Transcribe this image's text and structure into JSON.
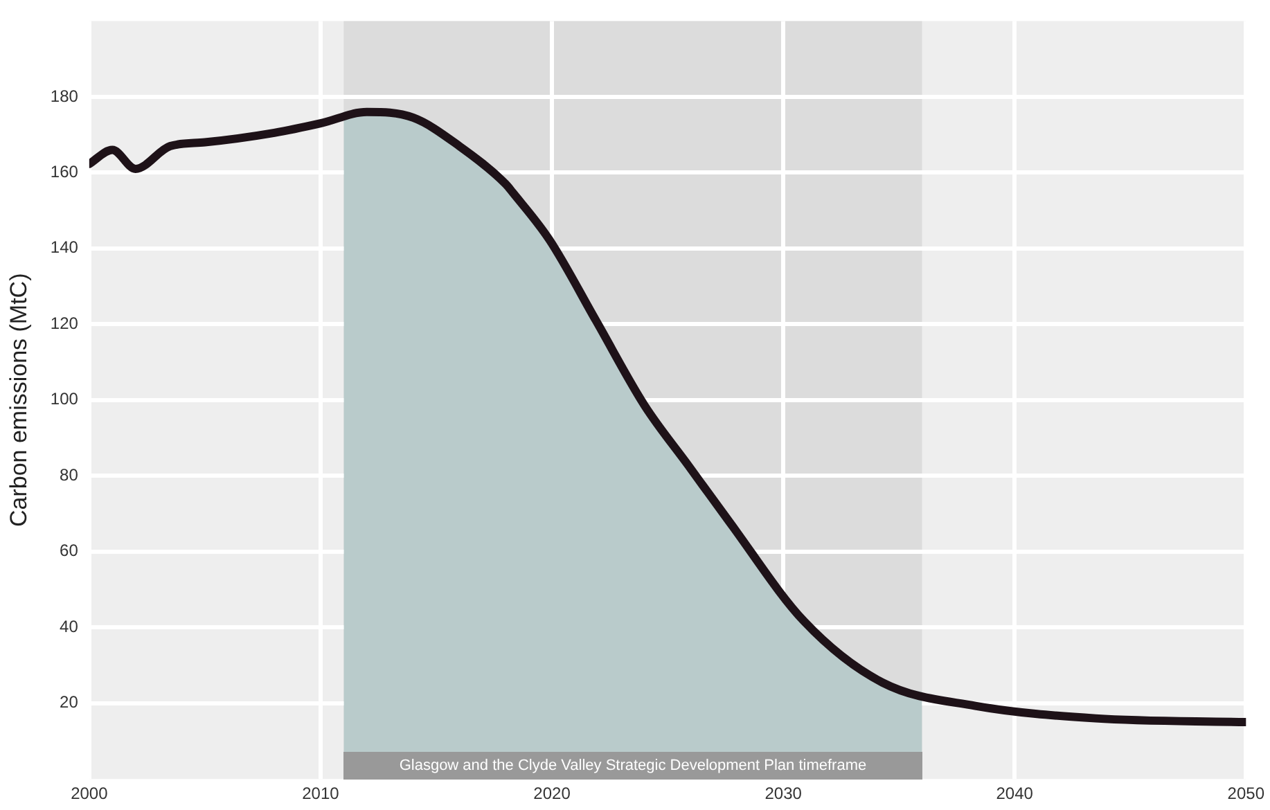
{
  "chart_data": {
    "type": "line",
    "ylabel": "Carbon emissions (MtC)",
    "xlim": [
      2000,
      2050
    ],
    "xticks": [
      2000,
      2010,
      2020,
      2030,
      2040,
      2050
    ],
    "ylim": [
      0,
      200
    ],
    "yticks": [
      20,
      40,
      60,
      80,
      100,
      120,
      140,
      160,
      180
    ],
    "grid": true,
    "bands": [
      {
        "axis": "x",
        "from": 2011,
        "to": 2036,
        "label": "Glasgow and the Clyde Valley Strategic Development Plan timeframe",
        "color": "#dcdcdc"
      }
    ],
    "series": [
      {
        "type": "area",
        "color": "#b9cbcb",
        "x": [
          2011,
          2012,
          2014,
          2016,
          2018,
          2018.3,
          2019.9,
          2021.9,
          2024,
          2025.9,
          2027.7,
          2030.9,
          2034.3,
          2036
        ],
        "values": [
          175,
          176,
          174.5,
          167,
          157,
          154.8,
          142.2,
          121,
          98.6,
          82.7,
          67.6,
          41.6,
          25.4,
          23
        ]
      },
      {
        "type": "line",
        "color": "#1e1218",
        "x": [
          2000,
          2001,
          2002,
          2003.5,
          2005,
          2008,
          2010,
          2012,
          2014,
          2016,
          2018,
          2018.3,
          2019.9,
          2021.9,
          2024,
          2025.9,
          2027.7,
          2030.9,
          2034.3,
          2038.3,
          2043.5,
          2050
        ],
        "values": [
          162.3,
          166,
          161,
          167,
          168,
          170.5,
          173,
          176,
          174.5,
          167,
          157,
          154.8,
          142.2,
          121,
          98.6,
          82.7,
          67.6,
          41.6,
          25.4,
          19.3,
          16,
          15
        ]
      }
    ]
  }
}
